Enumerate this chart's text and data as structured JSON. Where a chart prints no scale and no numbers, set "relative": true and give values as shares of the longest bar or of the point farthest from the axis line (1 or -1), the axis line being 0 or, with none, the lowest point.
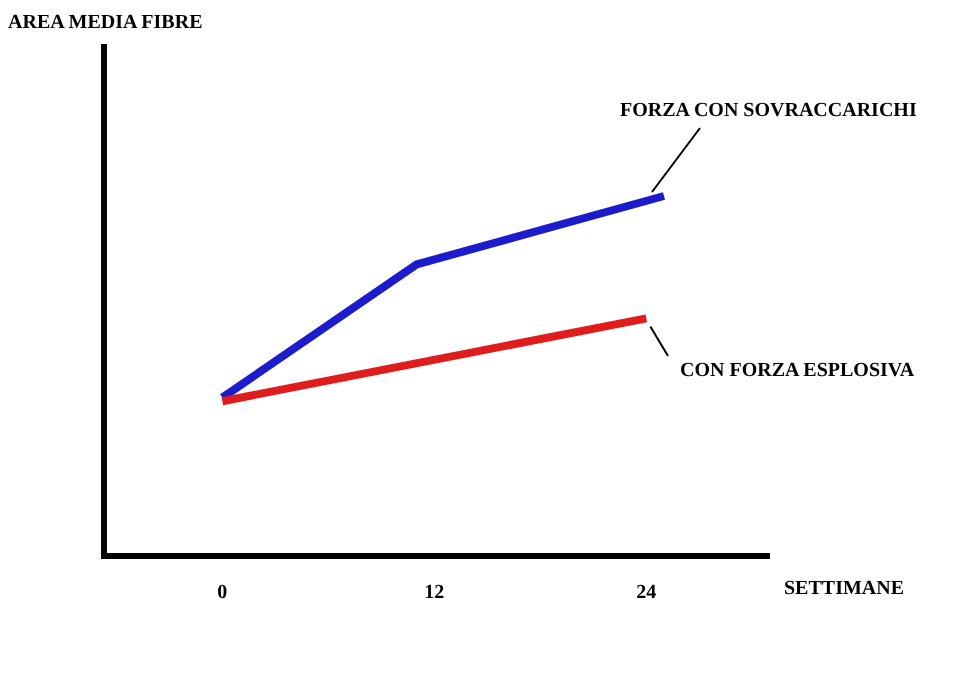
{
  "chart_data": {
    "type": "line",
    "relative": true,
    "annotations": [
      "AREA MEDIA FIBRE"
    ],
    "xlabel": "SETTIMANE",
    "xlim": [
      -6.7,
      31
    ],
    "xticks": [
      0,
      12,
      24
    ],
    "legend": false,
    "grid": false,
    "series": [
      {
        "name": "FORZA CON SOVRACCARICHI",
        "color": "#1c1ccc",
        "x": [
          0,
          11,
          25
        ],
        "values": [
          0.44,
          0.81,
          1
        ]
      },
      {
        "name": "CON FORZA ESPLOSIVA",
        "color": "#e01c1c",
        "x": [
          0,
          24
        ],
        "values": [
          0.43,
          0.66
        ]
      }
    ]
  }
}
